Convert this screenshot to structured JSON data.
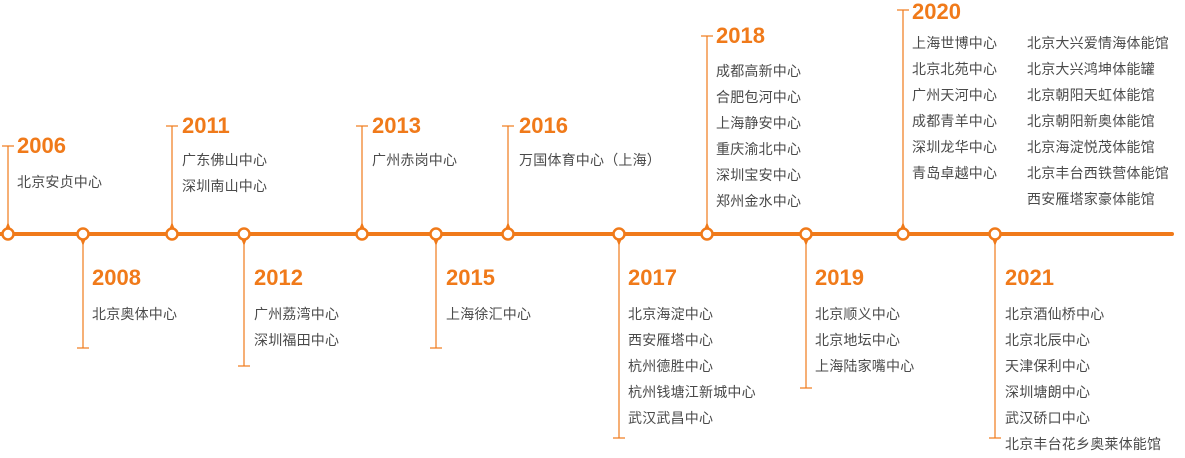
{
  "theme": {
    "accent": "#f07a1a",
    "text": "#4a4a4a",
    "background": "#ffffff"
  },
  "events": [
    {
      "year": "2006",
      "side": "above",
      "columns": [
        [
          "北京安贞中心"
        ]
      ]
    },
    {
      "year": "2008",
      "side": "below",
      "columns": [
        [
          "北京奥体中心"
        ]
      ]
    },
    {
      "year": "2011",
      "side": "above",
      "columns": [
        [
          "广东佛山中心",
          "深圳南山中心"
        ]
      ]
    },
    {
      "year": "2012",
      "side": "below",
      "columns": [
        [
          "广州荔湾中心",
          "深圳福田中心"
        ]
      ]
    },
    {
      "year": "2013",
      "side": "above",
      "columns": [
        [
          "广州赤岗中心"
        ]
      ]
    },
    {
      "year": "2015",
      "side": "below",
      "columns": [
        [
          "上海徐汇中心"
        ]
      ]
    },
    {
      "year": "2016",
      "side": "above",
      "columns": [
        [
          "万国体育中心（上海）"
        ]
      ]
    },
    {
      "year": "2017",
      "side": "below",
      "columns": [
        [
          "北京海淀中心",
          "西安雁塔中心",
          "杭州德胜中心",
          "杭州钱塘江新城中心",
          "武汉武昌中心"
        ]
      ]
    },
    {
      "year": "2018",
      "side": "above",
      "columns": [
        [
          "成都高新中心",
          "合肥包河中心",
          "上海静安中心",
          "重庆渝北中心",
          "深圳宝安中心",
          "郑州金水中心"
        ]
      ]
    },
    {
      "year": "2019",
      "side": "below",
      "columns": [
        [
          "北京顺义中心",
          "北京地坛中心",
          "上海陆家嘴中心"
        ]
      ]
    },
    {
      "year": "2020",
      "side": "above",
      "columns": [
        [
          "上海世博中心",
          "北京北苑中心",
          "广州天河中心",
          "成都青羊中心",
          "深圳龙华中心",
          "青岛卓越中心"
        ],
        [
          "北京大兴爱情海体能馆",
          "北京大兴鸿坤体能罐",
          "北京朝阳天虹体能馆",
          "北京朝阳新奥体能馆",
          "北京海淀悦茂体能馆",
          "北京丰台西铁营体能馆",
          "西安雁塔家豪体能馆"
        ]
      ]
    },
    {
      "year": "2021",
      "side": "below",
      "columns": [
        [
          "北京酒仙桥中心",
          "北京北辰中心",
          "天津保利中心",
          "深圳塘朗中心",
          "武汉硚口中心",
          "北京丰台花乡奥莱体能馆"
        ]
      ]
    }
  ]
}
